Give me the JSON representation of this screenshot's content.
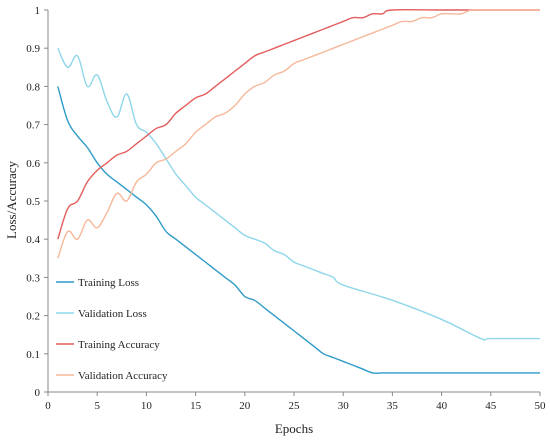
{
  "chart_data": {
    "type": "line",
    "title": "",
    "xlabel": "Epochs",
    "ylabel": "Loss/Accuracy",
    "xlim": [
      0,
      50
    ],
    "ylim": [
      0,
      1
    ],
    "xticks": [
      0,
      5,
      10,
      15,
      20,
      25,
      30,
      35,
      40,
      45,
      50
    ],
    "yticks": [
      0,
      0.1,
      0.2,
      0.3,
      0.4,
      0.5,
      0.6,
      0.7,
      0.8,
      0.9,
      1
    ],
    "grid": false,
    "legend_position": "bottom-left",
    "series": [
      {
        "name": "Training Loss",
        "color": "#2e9bc9",
        "x": [
          1,
          2,
          3,
          4,
          5,
          6,
          7,
          8,
          9,
          10,
          11,
          12,
          13,
          14,
          15,
          16,
          17,
          18,
          19,
          20,
          21,
          22,
          23,
          24,
          25,
          26,
          27,
          28,
          29,
          30,
          31,
          32,
          33,
          34,
          35,
          40,
          45,
          50
        ],
        "y": [
          0.8,
          0.71,
          0.67,
          0.64,
          0.6,
          0.57,
          0.55,
          0.53,
          0.51,
          0.49,
          0.46,
          0.42,
          0.4,
          0.38,
          0.36,
          0.34,
          0.32,
          0.3,
          0.28,
          0.25,
          0.24,
          0.22,
          0.2,
          0.18,
          0.16,
          0.14,
          0.12,
          0.1,
          0.09,
          0.08,
          0.07,
          0.06,
          0.05,
          0.05,
          0.05,
          0.05,
          0.05,
          0.05
        ]
      },
      {
        "name": "Validation Loss",
        "color": "#8fd6ea",
        "x": [
          1,
          2,
          3,
          4,
          5,
          6,
          7,
          8,
          9,
          10,
          11,
          12,
          13,
          14,
          15,
          16,
          17,
          18,
          19,
          20,
          21,
          22,
          23,
          24,
          25,
          26,
          27,
          28,
          29,
          30,
          35,
          40,
          44,
          45,
          50
        ],
        "y": [
          0.9,
          0.85,
          0.88,
          0.8,
          0.83,
          0.76,
          0.72,
          0.78,
          0.7,
          0.68,
          0.65,
          0.61,
          0.57,
          0.54,
          0.51,
          0.49,
          0.47,
          0.45,
          0.43,
          0.41,
          0.4,
          0.39,
          0.37,
          0.36,
          0.34,
          0.33,
          0.32,
          0.31,
          0.3,
          0.28,
          0.24,
          0.19,
          0.14,
          0.14,
          0.14
        ]
      },
      {
        "name": "Training Accuracy",
        "color": "#e45c5c",
        "x": [
          1,
          2,
          3,
          4,
          5,
          6,
          7,
          8,
          9,
          10,
          11,
          12,
          13,
          14,
          15,
          16,
          17,
          18,
          19,
          20,
          21,
          22,
          23,
          24,
          25,
          26,
          27,
          28,
          29,
          30,
          31,
          32,
          33,
          34,
          35,
          40,
          45,
          50
        ],
        "y": [
          0.4,
          0.48,
          0.5,
          0.55,
          0.58,
          0.6,
          0.62,
          0.63,
          0.65,
          0.67,
          0.69,
          0.7,
          0.73,
          0.75,
          0.77,
          0.78,
          0.8,
          0.82,
          0.84,
          0.86,
          0.88,
          0.89,
          0.9,
          0.91,
          0.92,
          0.93,
          0.94,
          0.95,
          0.96,
          0.97,
          0.98,
          0.98,
          0.99,
          0.99,
          1.0,
          1.0,
          1.0,
          1.0
        ]
      },
      {
        "name": "Validation Accuracy",
        "color": "#f6b89a",
        "x": [
          1,
          2,
          3,
          4,
          5,
          6,
          7,
          8,
          9,
          10,
          11,
          12,
          13,
          14,
          15,
          16,
          17,
          18,
          19,
          20,
          21,
          22,
          23,
          24,
          25,
          26,
          27,
          28,
          29,
          30,
          31,
          32,
          33,
          34,
          35,
          36,
          37,
          38,
          39,
          40,
          41,
          42,
          43,
          44,
          45,
          50
        ],
        "y": [
          0.35,
          0.42,
          0.4,
          0.45,
          0.43,
          0.47,
          0.52,
          0.5,
          0.55,
          0.57,
          0.6,
          0.61,
          0.63,
          0.65,
          0.68,
          0.7,
          0.72,
          0.73,
          0.75,
          0.78,
          0.8,
          0.81,
          0.83,
          0.84,
          0.86,
          0.87,
          0.88,
          0.89,
          0.9,
          0.91,
          0.92,
          0.93,
          0.94,
          0.95,
          0.96,
          0.97,
          0.97,
          0.98,
          0.98,
          0.99,
          0.99,
          0.99,
          1.0,
          1.0,
          1.0,
          1.0
        ]
      }
    ]
  }
}
